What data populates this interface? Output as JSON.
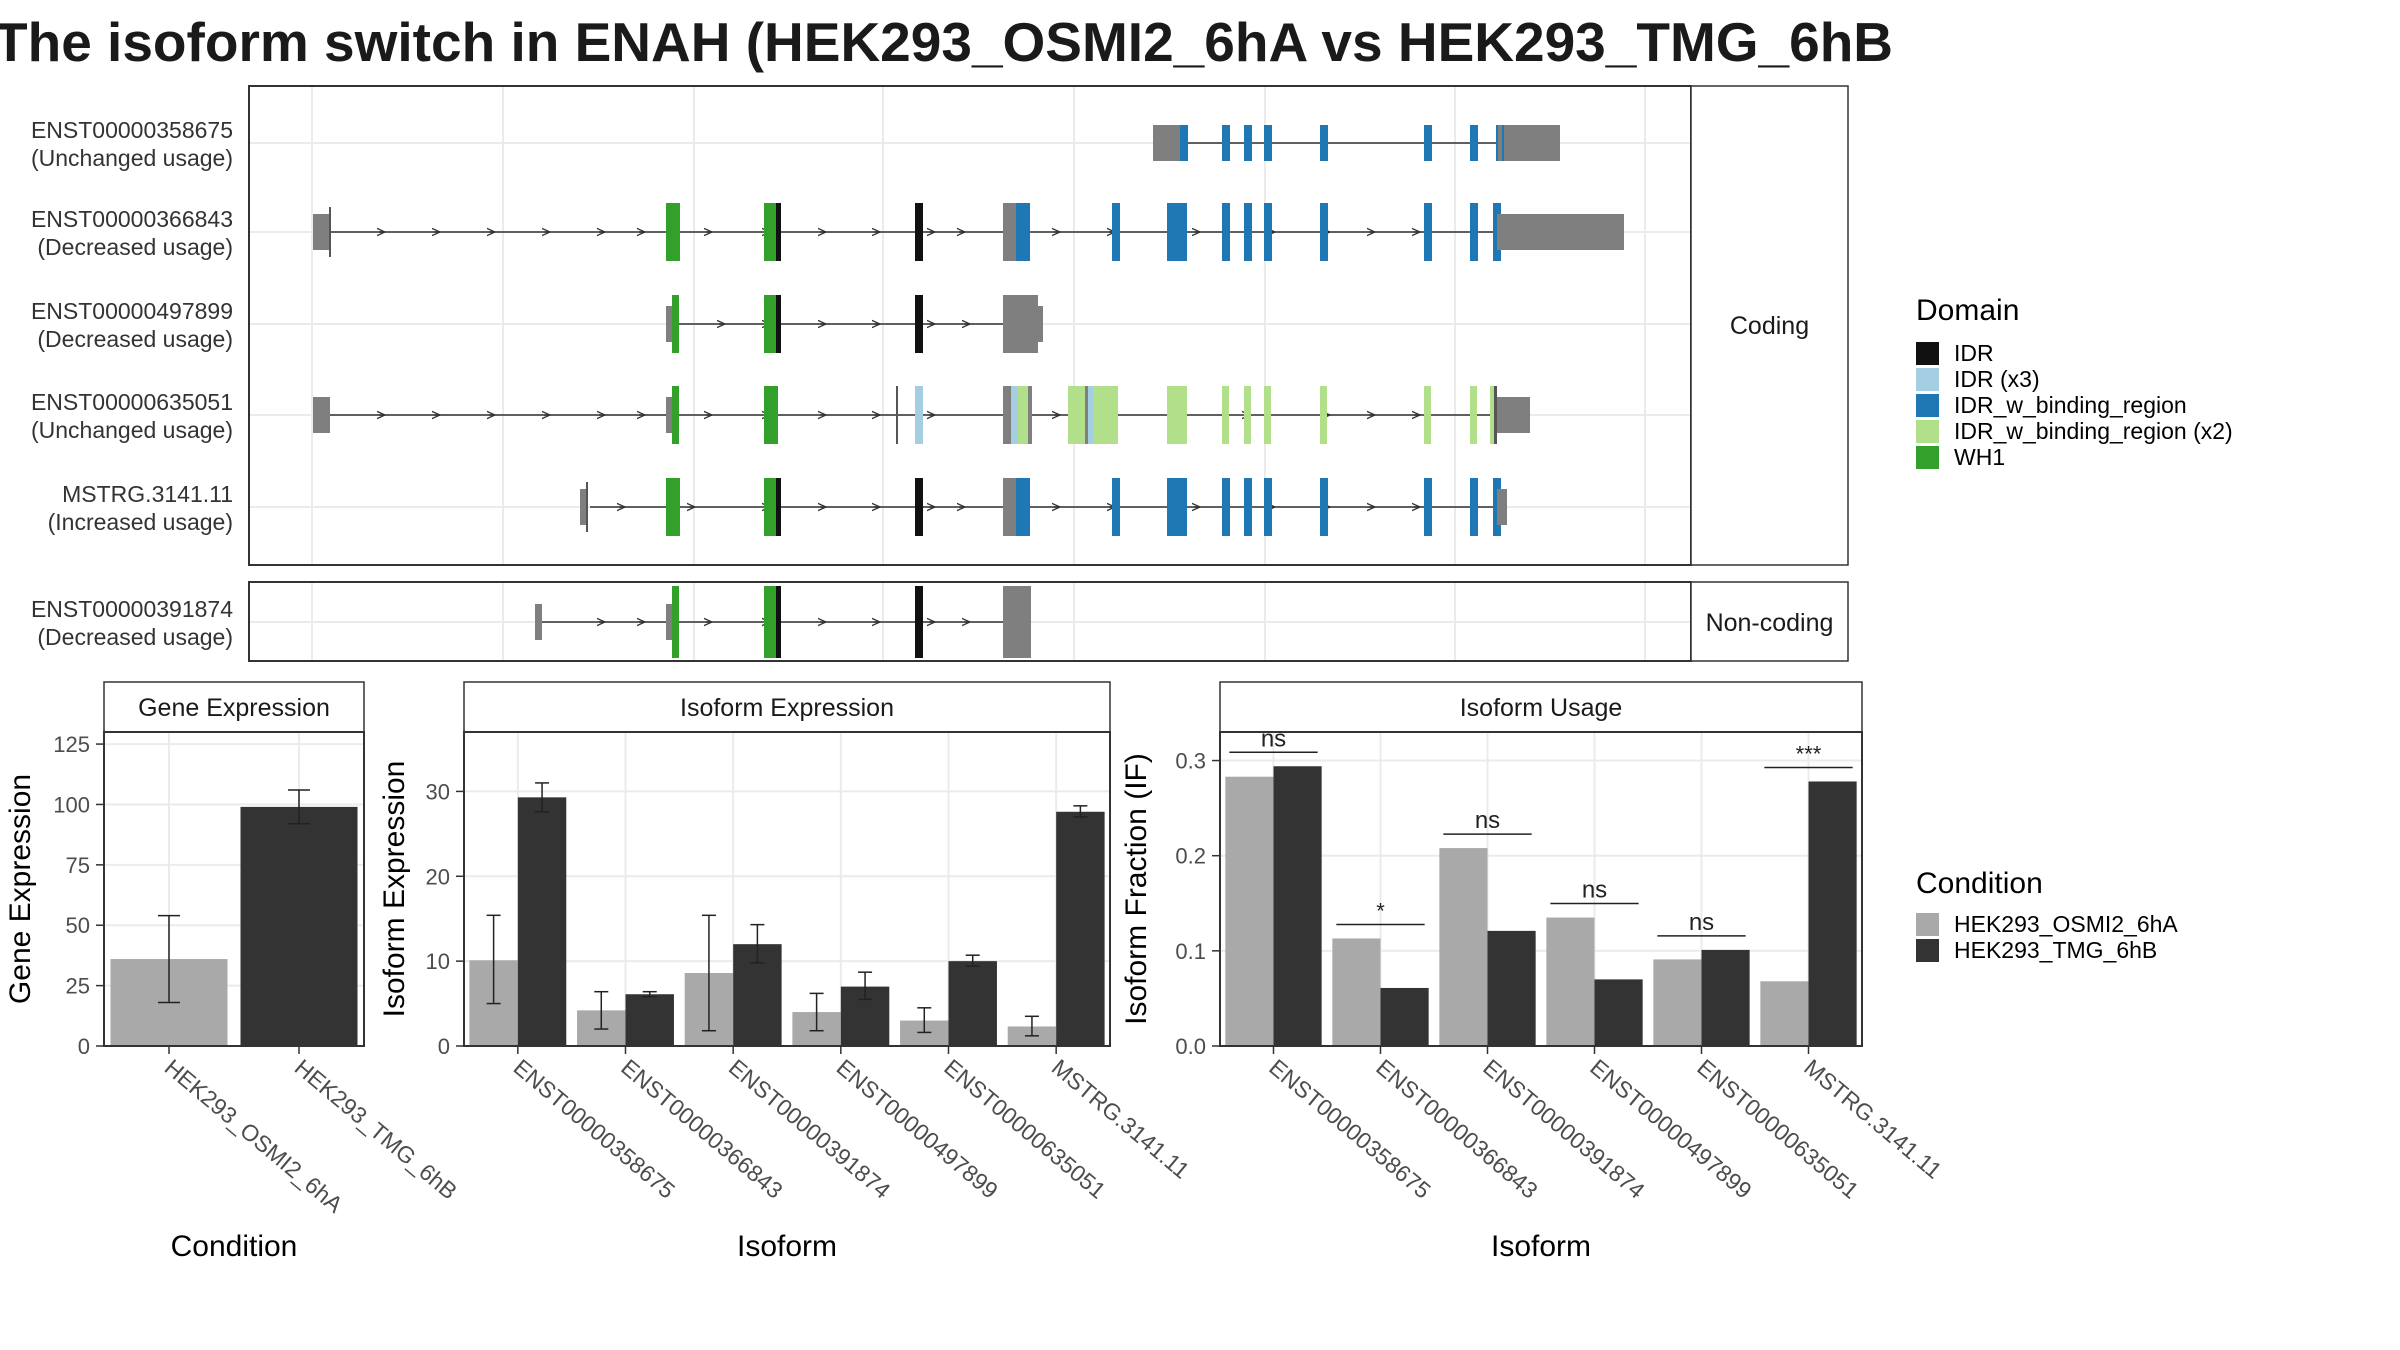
{
  "title": "The isoform switch in ENAH (HEK293_OSMI2_6hA vs HEK293_TMG_6hB",
  "colors": {
    "IDR": "#111111",
    "IDR (x3)": "#a6cee3",
    "IDR_w_binding_region": "#1f78b4",
    "IDR_w_binding_region (x2)": "#b2df8a",
    "WH1": "#33a02c",
    "utr": "#7f7f7f",
    "cond_a": "#a9a9a9",
    "cond_b": "#333333"
  },
  "structure": {
    "coding_strip": "Coding",
    "noncoding_strip": "Non-coding",
    "transcripts": [
      {
        "id": "ENST00000358675",
        "status": "(Unchanged usage)",
        "group": "coding"
      },
      {
        "id": "ENST00000366843",
        "status": "(Decreased usage)",
        "group": "coding"
      },
      {
        "id": "ENST00000497899",
        "status": "(Decreased usage)",
        "group": "coding"
      },
      {
        "id": "ENST00000635051",
        "status": "(Unchanged usage)",
        "group": "coding"
      },
      {
        "id": "MSTRG.3141.11",
        "status": "(Increased usage)",
        "group": "coding"
      },
      {
        "id": "ENST00000391874",
        "status": "(Decreased usage)",
        "group": "noncoding"
      }
    ]
  },
  "legend_domain": {
    "title": "Domain",
    "items": [
      "IDR",
      "IDR (x3)",
      "IDR_w_binding_region",
      "IDR_w_binding_region (x2)",
      "WH1"
    ]
  },
  "legend_condition": {
    "title": "Condition",
    "items": [
      "HEK293_OSMI2_6hA",
      "HEK293_TMG_6hB"
    ]
  },
  "chart_data": [
    {
      "type": "bar",
      "title": "Gene Expression",
      "xlabel": "Condition",
      "ylabel": "Gene Expression",
      "ylim": [
        0,
        130
      ],
      "yticks": [
        0,
        25,
        50,
        75,
        100,
        125
      ],
      "categories": [
        "HEK293_OSMI2_6hA",
        "HEK293_TMG_6hB"
      ],
      "values": [
        36,
        99
      ],
      "errors": [
        [
          18,
          54
        ],
        [
          92,
          106
        ]
      ]
    },
    {
      "type": "bar",
      "title": "Isoform Expression",
      "xlabel": "Isoform",
      "ylabel": "Isoform Expression",
      "ylim": [
        0,
        37
      ],
      "yticks": [
        0,
        10,
        20,
        30
      ],
      "categories": [
        "ENST00000358675",
        "ENST00000366843",
        "ENST00000391874",
        "ENST00000497899",
        "ENST00000635051",
        "MSTRG.3141.11"
      ],
      "series": [
        {
          "name": "HEK293_OSMI2_6hA",
          "values": [
            10.1,
            4.2,
            8.6,
            4.0,
            3.0,
            2.3
          ],
          "errors": [
            [
              5.0,
              15.4
            ],
            [
              2.0,
              6.4
            ],
            [
              1.8,
              15.4
            ],
            [
              1.8,
              6.2
            ],
            [
              1.6,
              4.5
            ],
            [
              1.2,
              3.5
            ]
          ]
        },
        {
          "name": "HEK293_TMG_6hB",
          "values": [
            29.3,
            6.1,
            12.0,
            7.0,
            10.0,
            27.6
          ],
          "errors": [
            [
              27.6,
              31.0
            ],
            [
              5.8,
              6.4
            ],
            [
              9.8,
              14.3
            ],
            [
              5.5,
              8.7
            ],
            [
              9.4,
              10.7
            ],
            [
              27.0,
              28.3
            ]
          ]
        }
      ]
    },
    {
      "type": "bar",
      "title": "Isoform Usage",
      "xlabel": "Isoform",
      "ylabel": "Isoform Fraction (IF)",
      "ylim": [
        0,
        0.33
      ],
      "yticks": [
        0.0,
        0.1,
        0.2,
        0.3
      ],
      "ytick_labels": [
        "0.0",
        "0.1",
        "0.2",
        "0.3"
      ],
      "categories": [
        "ENST00000358675",
        "ENST00000366843",
        "ENST00000391874",
        "ENST00000497899",
        "ENST00000635051",
        "MSTRG.3141.11"
      ],
      "series": [
        {
          "name": "HEK293_OSMI2_6hA",
          "values": [
            0.283,
            0.113,
            0.208,
            0.135,
            0.091,
            0.068
          ]
        },
        {
          "name": "HEK293_TMG_6hB",
          "values": [
            0.294,
            0.061,
            0.121,
            0.07,
            0.101,
            0.278
          ]
        }
      ],
      "significance": [
        "ns",
        "*",
        "ns",
        "ns",
        "ns",
        "***"
      ]
    }
  ]
}
